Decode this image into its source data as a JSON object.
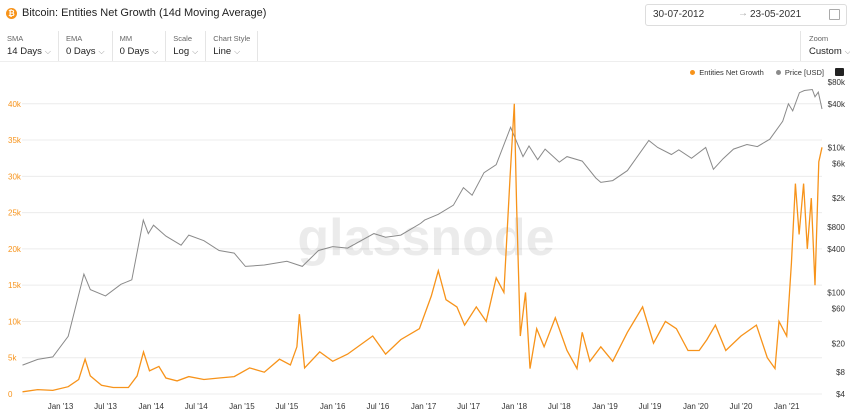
{
  "header": {
    "title": "Bitcoin: Entities Net Growth (14d Moving Average)",
    "date_from": "30-07-2012",
    "date_to": "23-05-2021"
  },
  "controls": [
    {
      "label": "SMA",
      "value": "14 Days"
    },
    {
      "label": "EMA",
      "value": "0 Days"
    },
    {
      "label": "MM",
      "value": "0 Days"
    },
    {
      "label": "Scale",
      "value": "Log"
    },
    {
      "label": "Chart Style",
      "value": "Line"
    }
  ],
  "zoom": {
    "label": "Zoom",
    "value": "Custom"
  },
  "watermark": "glassnode",
  "colors": {
    "growth": "#f7931a",
    "price": "#8a8a8a",
    "grid": "#ececec"
  },
  "chart_data": {
    "type": "line",
    "title": "Bitcoin: Entities Net Growth (14d Moving Average)",
    "legend_position": "top-right",
    "grid": true,
    "x_ticks": [
      "Jan '13",
      "Jul '13",
      "Jan '14",
      "Jul '14",
      "Jan '15",
      "Jul '15",
      "Jan '16",
      "Jul '16",
      "Jan '17",
      "Jul '17",
      "Jan '18",
      "Jul '18",
      "Jan '19",
      "Jul '19",
      "Jan '20",
      "Jul '20",
      "Jan '21"
    ],
    "x_tick_dates": [
      "2013-01-01",
      "2013-07-01",
      "2014-01-01",
      "2014-07-01",
      "2015-01-01",
      "2015-07-01",
      "2016-01-01",
      "2016-07-01",
      "2017-01-01",
      "2017-07-01",
      "2018-01-01",
      "2018-07-01",
      "2019-01-01",
      "2019-07-01",
      "2020-01-01",
      "2020-07-01",
      "2021-01-01"
    ],
    "x_range": [
      "2012-07-30",
      "2021-05-23"
    ],
    "left_axis": {
      "ticks": [
        "0",
        "5k",
        "10k",
        "15k",
        "20k",
        "25k",
        "30k",
        "35k",
        "40k"
      ],
      "values": [
        0,
        5000,
        10000,
        15000,
        20000,
        25000,
        30000,
        35000,
        40000
      ],
      "range": [
        0,
        43000
      ]
    },
    "right_axis": {
      "scale": "log",
      "ticks": [
        "$4",
        "$8",
        "$20",
        "$60",
        "$100",
        "$400",
        "$800",
        "$2k",
        "$6k",
        "$10k",
        "$40k",
        "$80k"
      ],
      "values": [
        4,
        8,
        20,
        60,
        100,
        400,
        800,
        2000,
        6000,
        10000,
        40000,
        80000
      ],
      "range": [
        4,
        80000
      ]
    },
    "series": [
      {
        "name": "Entities Net Growth",
        "axis": "left",
        "points": [
          [
            "2012-08-01",
            300
          ],
          [
            "2012-10-01",
            600
          ],
          [
            "2012-12-01",
            500
          ],
          [
            "2013-02-01",
            1000
          ],
          [
            "2013-03-15",
            2000
          ],
          [
            "2013-04-10",
            4800
          ],
          [
            "2013-05-01",
            2500
          ],
          [
            "2013-06-15",
            1200
          ],
          [
            "2013-08-01",
            900
          ],
          [
            "2013-10-01",
            900
          ],
          [
            "2013-11-05",
            2500
          ],
          [
            "2013-12-01",
            5800
          ],
          [
            "2013-12-25",
            3200
          ],
          [
            "2014-02-01",
            3800
          ],
          [
            "2014-03-01",
            2200
          ],
          [
            "2014-04-15",
            1800
          ],
          [
            "2014-06-01",
            2400
          ],
          [
            "2014-08-01",
            2000
          ],
          [
            "2014-10-01",
            2200
          ],
          [
            "2014-12-01",
            2400
          ],
          [
            "2015-02-01",
            3600
          ],
          [
            "2015-04-01",
            3000
          ],
          [
            "2015-06-01",
            4800
          ],
          [
            "2015-07-15",
            4000
          ],
          [
            "2015-08-10",
            6500
          ],
          [
            "2015-08-20",
            11000
          ],
          [
            "2015-09-10",
            3600
          ],
          [
            "2015-11-10",
            5800
          ],
          [
            "2016-01-01",
            4500
          ],
          [
            "2016-03-01",
            5500
          ],
          [
            "2016-06-10",
            8000
          ],
          [
            "2016-08-01",
            5500
          ],
          [
            "2016-10-01",
            7500
          ],
          [
            "2016-12-15",
            9000
          ],
          [
            "2017-02-01",
            13500
          ],
          [
            "2017-03-01",
            17000
          ],
          [
            "2017-04-01",
            13000
          ],
          [
            "2017-05-15",
            12000
          ],
          [
            "2017-06-15",
            9500
          ],
          [
            "2017-08-01",
            12000
          ],
          [
            "2017-09-10",
            10000
          ],
          [
            "2017-10-20",
            16000
          ],
          [
            "2017-11-20",
            14000
          ],
          [
            "2017-12-15",
            30000
          ],
          [
            "2018-01-01",
            40000
          ],
          [
            "2018-01-10",
            26000
          ],
          [
            "2018-01-25",
            8000
          ],
          [
            "2018-02-15",
            14000
          ],
          [
            "2018-03-05",
            3500
          ],
          [
            "2018-04-01",
            9000
          ],
          [
            "2018-05-01",
            6500
          ],
          [
            "2018-06-15",
            10500
          ],
          [
            "2018-08-01",
            6000
          ],
          [
            "2018-09-10",
            3500
          ],
          [
            "2018-10-01",
            8500
          ],
          [
            "2018-11-01",
            4500
          ],
          [
            "2018-12-15",
            6500
          ],
          [
            "2019-02-01",
            4500
          ],
          [
            "2019-04-01",
            8500
          ],
          [
            "2019-06-01",
            12000
          ],
          [
            "2019-07-15",
            7000
          ],
          [
            "2019-09-01",
            10000
          ],
          [
            "2019-10-15",
            9000
          ],
          [
            "2019-12-01",
            6000
          ],
          [
            "2020-01-15",
            6000
          ],
          [
            "2020-02-15",
            7500
          ],
          [
            "2020-03-20",
            9500
          ],
          [
            "2020-05-01",
            6000
          ],
          [
            "2020-07-01",
            8000
          ],
          [
            "2020-09-01",
            9500
          ],
          [
            "2020-10-15",
            5000
          ],
          [
            "2020-11-15",
            3500
          ],
          [
            "2020-12-01",
            10000
          ],
          [
            "2021-01-01",
            8000
          ],
          [
            "2021-01-20",
            18000
          ],
          [
            "2021-02-05",
            29000
          ],
          [
            "2021-02-20",
            22000
          ],
          [
            "2021-03-10",
            29000
          ],
          [
            "2021-03-25",
            20000
          ],
          [
            "2021-04-10",
            27000
          ],
          [
            "2021-04-25",
            15000
          ],
          [
            "2021-05-10",
            32000
          ],
          [
            "2021-05-23",
            34000
          ]
        ]
      },
      {
        "name": "Price [USD]",
        "axis": "right",
        "points": [
          [
            "2012-08-01",
            10
          ],
          [
            "2012-10-01",
            12
          ],
          [
            "2012-12-01",
            13
          ],
          [
            "2013-02-01",
            25
          ],
          [
            "2013-04-05",
            180
          ],
          [
            "2013-05-01",
            110
          ],
          [
            "2013-07-01",
            90
          ],
          [
            "2013-09-01",
            130
          ],
          [
            "2013-10-15",
            150
          ],
          [
            "2013-11-30",
            1000
          ],
          [
            "2013-12-20",
            650
          ],
          [
            "2014-01-10",
            850
          ],
          [
            "2014-03-01",
            600
          ],
          [
            "2014-05-01",
            450
          ],
          [
            "2014-06-01",
            620
          ],
          [
            "2014-08-01",
            520
          ],
          [
            "2014-10-01",
            380
          ],
          [
            "2014-12-01",
            350
          ],
          [
            "2015-01-15",
            230
          ],
          [
            "2015-04-01",
            240
          ],
          [
            "2015-07-01",
            270
          ],
          [
            "2015-09-01",
            230
          ],
          [
            "2015-11-05",
            380
          ],
          [
            "2016-01-01",
            430
          ],
          [
            "2016-03-01",
            410
          ],
          [
            "2016-06-15",
            650
          ],
          [
            "2016-08-01",
            580
          ],
          [
            "2016-10-01",
            620
          ],
          [
            "2016-12-20",
            900
          ],
          [
            "2017-01-05",
            1000
          ],
          [
            "2017-03-01",
            1200
          ],
          [
            "2017-05-01",
            1600
          ],
          [
            "2017-06-10",
            2800
          ],
          [
            "2017-07-15",
            2200
          ],
          [
            "2017-09-01",
            4500
          ],
          [
            "2017-10-20",
            5800
          ],
          [
            "2017-12-17",
            19000
          ],
          [
            "2018-01-15",
            11000
          ],
          [
            "2018-02-05",
            7500
          ],
          [
            "2018-03-01",
            10500
          ],
          [
            "2018-04-05",
            6800
          ],
          [
            "2018-05-05",
            9500
          ],
          [
            "2018-07-01",
            6300
          ],
          [
            "2018-08-01",
            7500
          ],
          [
            "2018-10-01",
            6500
          ],
          [
            "2018-11-25",
            3800
          ],
          [
            "2018-12-15",
            3300
          ],
          [
            "2019-02-01",
            3500
          ],
          [
            "2019-04-01",
            4800
          ],
          [
            "2019-06-26",
            12500
          ],
          [
            "2019-08-01",
            10000
          ],
          [
            "2019-09-25",
            8000
          ],
          [
            "2019-10-25",
            9300
          ],
          [
            "2019-12-15",
            7100
          ],
          [
            "2020-02-10",
            10000
          ],
          [
            "2020-03-12",
            5000
          ],
          [
            "2020-04-20",
            7000
          ],
          [
            "2020-06-01",
            9500
          ],
          [
            "2020-07-25",
            11000
          ],
          [
            "2020-09-05",
            10300
          ],
          [
            "2020-10-25",
            13000
          ],
          [
            "2020-12-16",
            23000
          ],
          [
            "2021-01-08",
            40000
          ],
          [
            "2021-01-25",
            32000
          ],
          [
            "2021-02-21",
            57000
          ],
          [
            "2021-03-13",
            61000
          ],
          [
            "2021-04-14",
            63000
          ],
          [
            "2021-04-25",
            50000
          ],
          [
            "2021-05-08",
            58000
          ],
          [
            "2021-05-23",
            34000
          ]
        ]
      }
    ]
  }
}
